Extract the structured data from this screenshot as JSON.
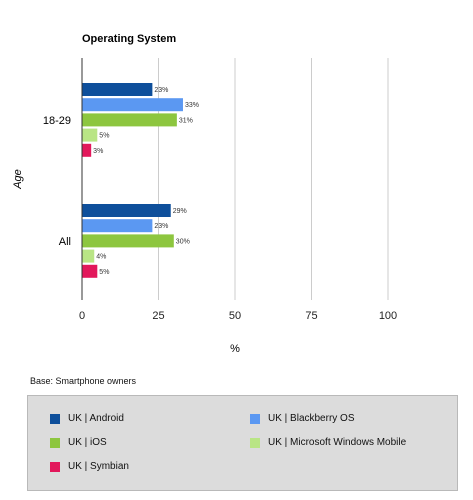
{
  "chart_data": {
    "type": "bar",
    "orientation": "horizontal",
    "title": "Operating System",
    "xlabel": "%",
    "ylabel": "Age",
    "xlim": [
      0,
      100
    ],
    "xticks": [
      0,
      25,
      50,
      75,
      100
    ],
    "categories": [
      "18-29",
      "All"
    ],
    "grid": true,
    "legend_position": "bottom",
    "series": [
      {
        "name": "UK | Android",
        "color": "#0e4f9b",
        "values": [
          23,
          29
        ],
        "labels": [
          "23%",
          "29%"
        ]
      },
      {
        "name": "UK | Blackberry OS",
        "color": "#5b98f2",
        "values": [
          33,
          23
        ],
        "labels": [
          "33%",
          "23%"
        ]
      },
      {
        "name": "UK | iOS",
        "color": "#8dc63f",
        "values": [
          31,
          30
        ],
        "labels": [
          "31%",
          "30%"
        ]
      },
      {
        "name": "UK | Microsoft Windows Mobile",
        "color": "#b9e585",
        "values": [
          5,
          4
        ],
        "labels": [
          "5%",
          "4%"
        ]
      },
      {
        "name": "UK | Symbian",
        "color": "#e2185b",
        "values": [
          3,
          5
        ],
        "labels": [
          "3%",
          "5%"
        ]
      }
    ]
  },
  "note": "Base: Smartphone owners"
}
